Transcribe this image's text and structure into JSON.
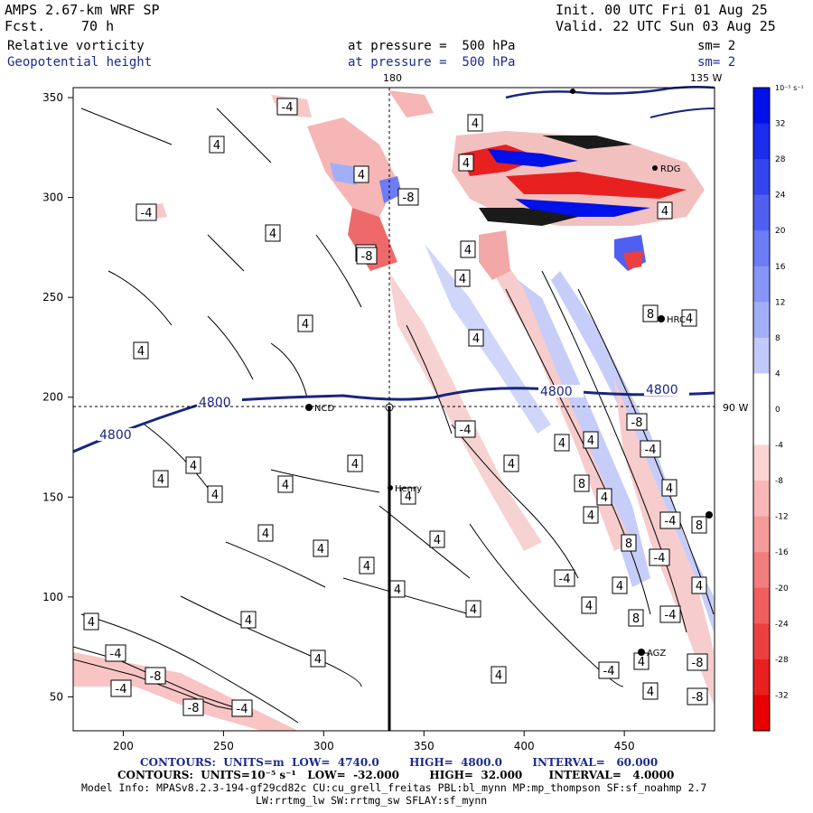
{
  "header": {
    "model": "AMPS 2.67-km WRF SP",
    "fcst_label": "Fcst.",
    "fcst_value": "70 h",
    "init": "Init. 00 UTC Fri 01 Aug 25",
    "valid": "Valid. 22 UTC Sun 03 Aug 25",
    "field1": "Relative vorticity",
    "field1_level": "at pressure =  500 hPa",
    "field1_sm": "sm= 2",
    "field2": "Geopotential height",
    "field2_level": "at pressure =  500 hPa",
    "field2_sm": "sm= 2"
  },
  "map_labels": {
    "lon_top_left": "180",
    "lon_top_right": "135 W",
    "lat_right": "90 W",
    "stations": [
      "NCD",
      "Henry",
      "RDG",
      "HRC",
      "AGZ"
    ],
    "height_contour_labels": [
      "4800",
      "4800",
      "4800",
      "4800"
    ],
    "vorticity_contour_labels": [
      "-4",
      "4",
      "-8",
      "8"
    ]
  },
  "axes": {
    "x_ticks": [
      "200",
      "250",
      "300",
      "350",
      "400",
      "450"
    ],
    "y_ticks": [
      "350",
      "300",
      "250",
      "200",
      "150",
      "100",
      "50"
    ]
  },
  "colorbar": {
    "unit": "10⁻⁵ s⁻¹",
    "labels": [
      "32",
      "28",
      "24",
      "20",
      "16",
      "12",
      "8",
      "4",
      "0",
      "-4",
      "-8",
      "-12",
      "-16",
      "-20",
      "-24",
      "-28",
      "-32"
    ],
    "colors": [
      "#0010e8",
      "#1a2cec",
      "#3445ef",
      "#4f60f1",
      "#6b7cf4",
      "#8795f6",
      "#a3aef8",
      "#c2c9fb",
      "#ffffff",
      "#ffffff",
      "#fbd4d4",
      "#f9b7b7",
      "#f69a9a",
      "#f37c7c",
      "#f05e5e",
      "#ec4040",
      "#e82020",
      "#e80000"
    ]
  },
  "footer": {
    "line1": "CONTOURS:  UNITS=m  LOW=  4740.0        HIGH=  4800.0        INTERVAL=   60.000",
    "line2": "CONTOURS:  UNITS=10⁻⁵ s⁻¹   LOW=  -32.000        HIGH=  32.000       INTERVAL=   4.0000",
    "line3": "Model Info: MPASv8.2.3-194-gf29cd82c CU:cu_grell_freitas PBL:bl_mynn MP:mp_thompson SF:sf_noahmp 2.7",
    "line4": "LW:rrtmg_lw SW:rrtmg_sw SFLAY:sf_mynn"
  }
}
